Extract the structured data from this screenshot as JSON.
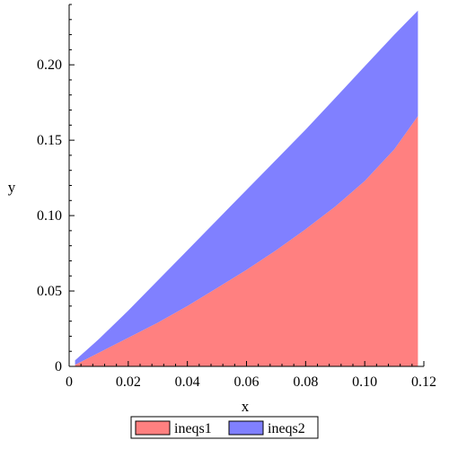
{
  "chart_data": {
    "type": "area",
    "xlabel": "x",
    "ylabel": "y",
    "xlim": [
      0,
      0.12
    ],
    "ylim": [
      0,
      0.24
    ],
    "x_ticks": [
      0,
      0.02,
      0.04,
      0.06,
      0.08,
      0.1,
      0.12
    ],
    "x_tick_labels": [
      "0",
      "0.02",
      "0.04",
      "0.06",
      "0.08",
      "0.10",
      "0.12"
    ],
    "y_ticks": [
      0,
      0.05,
      0.1,
      0.15,
      0.2
    ],
    "y_tick_labels": [
      "0",
      "0.05",
      "0.10",
      "0.15",
      "0.20"
    ],
    "grid": false,
    "legend_position": "bottom-center",
    "series": [
      {
        "name": "ineqs1",
        "color": "#ff8080",
        "x": [
          0.002,
          0.01,
          0.02,
          0.03,
          0.04,
          0.05,
          0.06,
          0.07,
          0.08,
          0.09,
          0.1,
          0.11,
          0.118
        ],
        "y_lower": [
          0,
          0,
          0,
          0,
          0,
          0,
          0,
          0,
          0,
          0,
          0,
          0,
          0
        ],
        "y_upper": [
          0.001,
          0.009,
          0.019,
          0.029,
          0.04,
          0.052,
          0.064,
          0.077,
          0.091,
          0.106,
          0.123,
          0.144,
          0.166
        ]
      },
      {
        "name": "ineqs2",
        "color": "#8080ff",
        "x": [
          0.002,
          0.01,
          0.02,
          0.03,
          0.04,
          0.05,
          0.06,
          0.07,
          0.08,
          0.09,
          0.1,
          0.11,
          0.118
        ],
        "y_lower": [
          0.001,
          0.009,
          0.019,
          0.029,
          0.04,
          0.052,
          0.064,
          0.077,
          0.091,
          0.106,
          0.123,
          0.144,
          0.166
        ],
        "y_upper": [
          0.004,
          0.018,
          0.037,
          0.057,
          0.077,
          0.097,
          0.117,
          0.137,
          0.157,
          0.178,
          0.199,
          0.22,
          0.236
        ]
      }
    ]
  }
}
